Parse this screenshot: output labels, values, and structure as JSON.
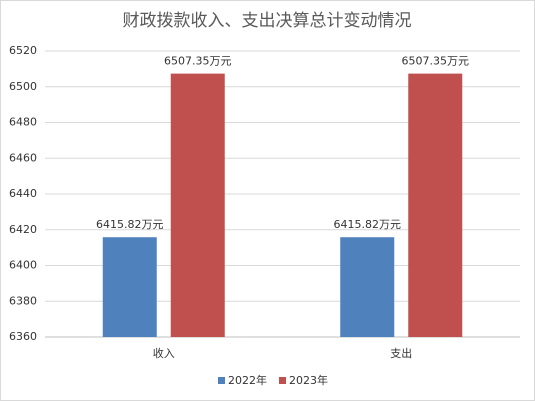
{
  "chart_data": {
    "type": "bar",
    "title": "财政拨款收入、支出决算总计变动情况",
    "categories": [
      "收入",
      "支出"
    ],
    "series": [
      {
        "name": "2022年",
        "color": "#4f81bd",
        "values": [
          6415.82,
          6415.82
        ],
        "value_labels": [
          "6415.82万元",
          "6415.82万元"
        ]
      },
      {
        "name": "2023年",
        "color": "#c0504d",
        "values": [
          6507.35,
          6507.35
        ],
        "value_labels": [
          "6507.35万元",
          "6507.35万元"
        ]
      }
    ],
    "ylim": [
      6360,
      6520
    ],
    "yticks": [
      6360,
      6380,
      6400,
      6420,
      6440,
      6460,
      6480,
      6500,
      6520
    ],
    "grid": true,
    "legend": "bottom"
  }
}
